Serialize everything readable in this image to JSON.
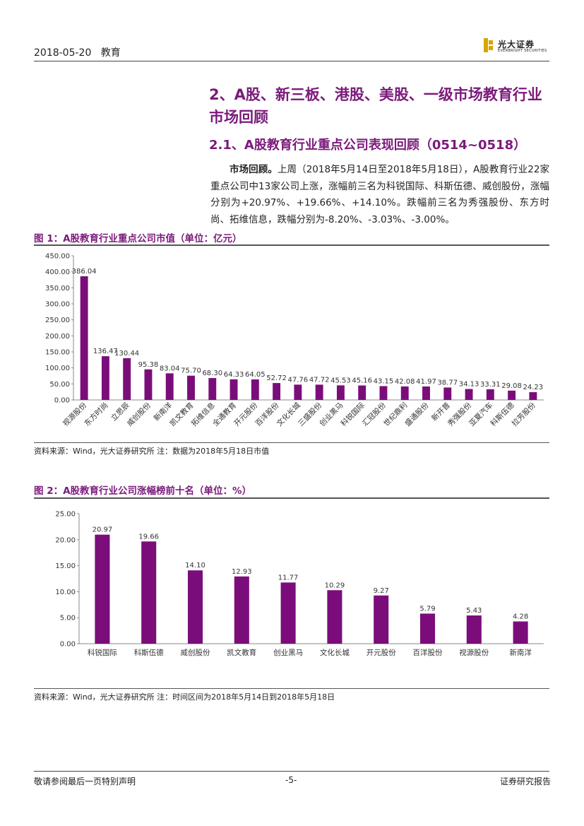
{
  "header": {
    "date": "2018-05-20",
    "sector": "教育",
    "logo_name": "光大证券",
    "logo_sub": "EVERBRIGHT SECURITIES"
  },
  "section": {
    "title": "2、A股、新三板、港股、美股、一级市场教育行业市场回顾",
    "subtitle": "2.1、A股教育行业重点公司表现回顾（0514~0518）",
    "para_bold": "市场回顾。",
    "para_rest": "上周（2018年5月14日至2018年5月18日），A股教育行业22家重点公司中13家公司上涨，涨幅前三名为科锐国际、科斯伍德、威创股份，涨幅分别为+20.97%、+19.66%、+14.10%。跌幅前三名为秀强股份、东方时尚、拓维信息，跌幅分别为-8.20%、-3.03%、-3.00%。"
  },
  "figure1": {
    "title": "图 1：A股教育行业重点公司市值（单位：亿元）",
    "source": "资料来源：Wind，光大证券研究所   注：数据为2018年5月18日市值"
  },
  "figure2": {
    "title": "图 2：A股教育行业公司涨幅榜前十名（单位：%）",
    "source": "资料来源：Wind，光大证券研究所   注：时间区间为2018年5月14日到2018年5月18日"
  },
  "footer": {
    "left": "敬请参阅最后一页特别声明",
    "page": "-5-",
    "right": "证券研究报告"
  },
  "chart_data": [
    {
      "type": "bar",
      "title": "A股教育行业重点公司市值（单位：亿元）",
      "categories": [
        "视源股份",
        "东方时尚",
        "立思辰",
        "威创股份",
        "新南洋",
        "凯文教育",
        "拓维信息",
        "全通教育",
        "开元股份",
        "百洋股份",
        "文化长城",
        "三盛股份",
        "创业黑马",
        "科锐国际",
        "汇冠股份",
        "世纪鼎利",
        "盛通股份",
        "新开普",
        "秀强股份",
        "亚夏汽车",
        "科斯伍德",
        "拉芳股份"
      ],
      "values": [
        386.04,
        136.47,
        130.44,
        95.38,
        83.04,
        75.7,
        68.3,
        64.33,
        64.05,
        52.72,
        47.76,
        47.72,
        45.53,
        45.16,
        43.15,
        42.08,
        41.97,
        38.77,
        34.13,
        33.31,
        29.08,
        24.23
      ],
      "value_labels": [
        "386.04",
        "136.47",
        "130.44",
        "95.38",
        "83.04",
        "75.70",
        "68.30",
        "64.33",
        "64.05",
        "52.72",
        "47.76",
        "47.72",
        "45.53",
        "45.16",
        "43.15",
        "42.08",
        "41.97",
        "38.77",
        "34.13",
        "33.31",
        "29.08",
        "24.23"
      ],
      "yticks": [
        "0.00",
        "50.00",
        "100.00",
        "150.00",
        "200.00",
        "250.00",
        "300.00",
        "350.00",
        "400.00",
        "450.00"
      ],
      "ylim": [
        0,
        450
      ],
      "color": "#7b0d7b"
    },
    {
      "type": "bar",
      "title": "A股教育行业公司涨幅榜前十名（单位：%）",
      "categories": [
        "科锐国际",
        "科斯伍德",
        "威创股份",
        "凯文教育",
        "创业黑马",
        "文化长城",
        "开元股份",
        "百洋股份",
        "视源股份",
        "新南洋"
      ],
      "values": [
        20.97,
        19.66,
        14.1,
        12.93,
        11.77,
        10.29,
        9.27,
        5.79,
        5.43,
        4.28
      ],
      "value_labels": [
        "20.97",
        "19.66",
        "14.10",
        "12.93",
        "11.77",
        "10.29",
        "9.27",
        "5.79",
        "5.43",
        "4.28"
      ],
      "yticks": [
        "0.00",
        "5.00",
        "10.00",
        "15.00",
        "20.00",
        "25.00"
      ],
      "ylim": [
        0,
        25
      ],
      "color": "#7b0d7b"
    }
  ]
}
